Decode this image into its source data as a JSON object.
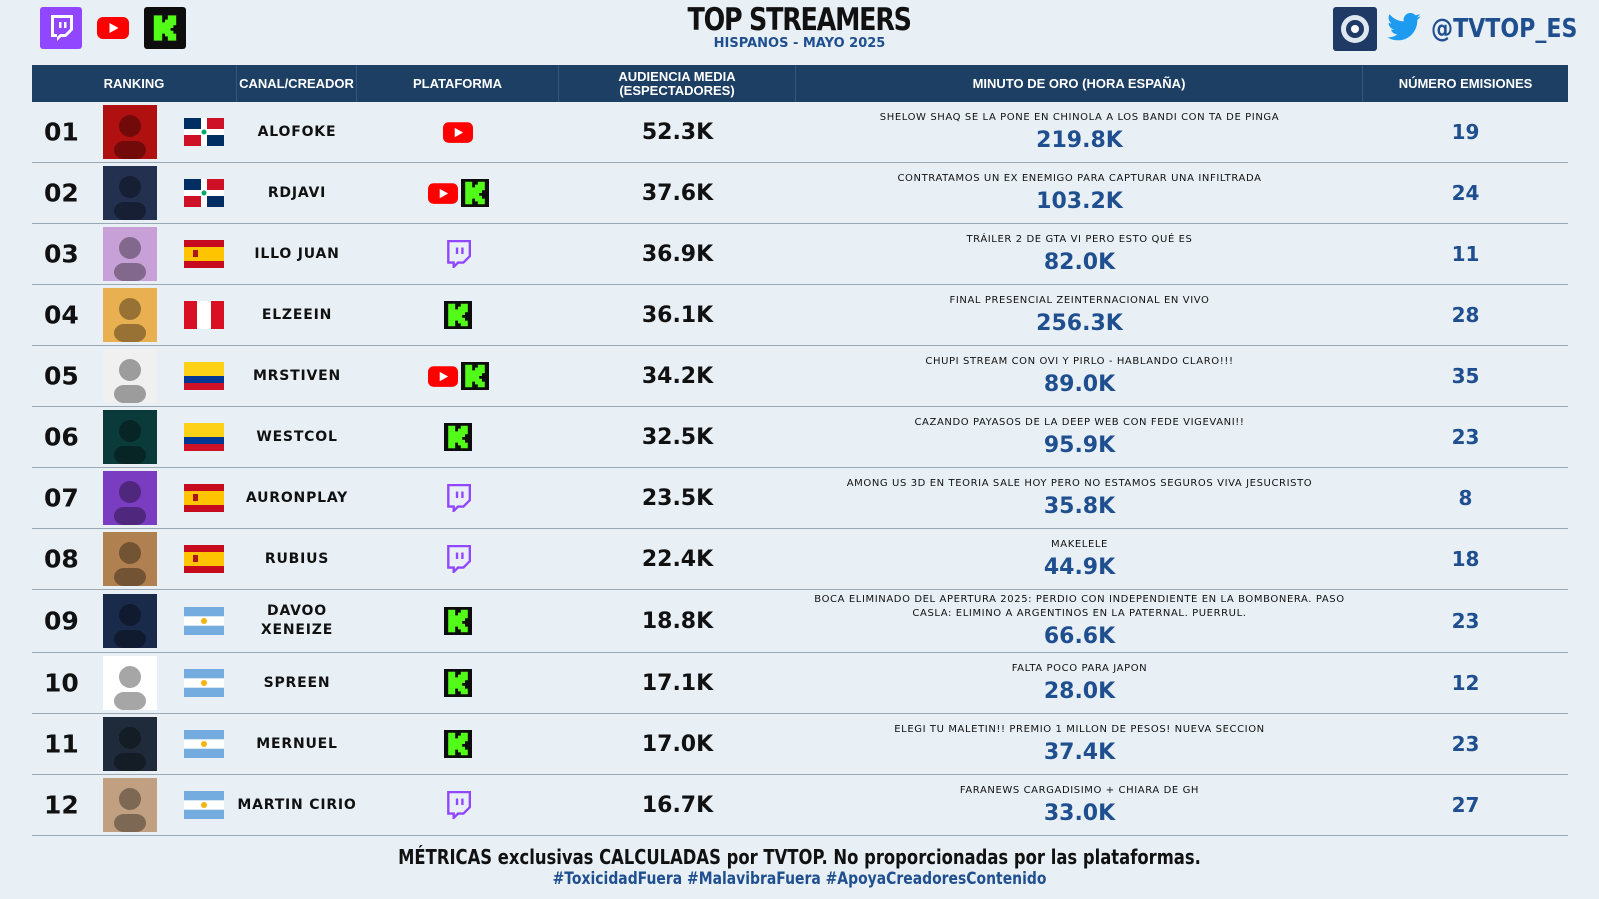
{
  "header": {
    "title": "TOP STREAMERS",
    "subtitle": "HISPANOS - MAYO 2025",
    "handle": "@TVTOP_ES",
    "platform_logos": [
      "twitch-logo",
      "youtube-logo",
      "kick-logo"
    ]
  },
  "colors": {
    "header_bg": "#1c3f63",
    "accent_blue": "#1f4f8f",
    "twitch": "#9146ff",
    "youtube": "#ff0000",
    "kick": "#53fc18",
    "page_bg": "#e8f0f6"
  },
  "columns": {
    "ranking": "RANKING",
    "canal": "CANAL/CREADOR",
    "plataforma": "PLATAFORMA",
    "audiencia_1": "AUDIENCIA MEDIA",
    "audiencia_2": "(ESPECTADORES)",
    "minuto": "MINUTO DE ORO (HORA ESPAÑA)",
    "emisiones": "NÚMERO EMISIONES"
  },
  "rows": [
    {
      "rank": "01",
      "flag": "dominican-republic",
      "name": "ALOFOKE",
      "platforms": [
        "youtube"
      ],
      "audience": "52.3K",
      "gold_title": "SHELOW SHAQ SE LA PONE EN CHINOLA A LOS BANDI CON TA DE PINGA",
      "gold_value": "219.8K",
      "streams": "19"
    },
    {
      "rank": "02",
      "flag": "dominican-republic",
      "name": "RDJAVI",
      "platforms": [
        "youtube",
        "kick"
      ],
      "audience": "37.6K",
      "gold_title": "CONTRATAMOS UN EX ENEMIGO PARA CAPTURAR UNA INFILTRADA",
      "gold_value": "103.2K",
      "streams": "24"
    },
    {
      "rank": "03",
      "flag": "spain",
      "name": "ILLO JUAN",
      "platforms": [
        "twitch"
      ],
      "audience": "36.9K",
      "gold_title": "TRÁILER 2 DE GTA VI PERO ESTO QUÉ ES",
      "gold_value": "82.0K",
      "streams": "11"
    },
    {
      "rank": "04",
      "flag": "peru",
      "name": "ELZEEIN",
      "platforms": [
        "kick"
      ],
      "audience": "36.1K",
      "gold_title": "FINAL PRESENCIAL ZEINTERNACIONAL EN VIVO",
      "gold_value": "256.3K",
      "streams": "28"
    },
    {
      "rank": "05",
      "flag": "colombia",
      "name": "MRSTIVEN",
      "platforms": [
        "youtube",
        "kick"
      ],
      "audience": "34.2K",
      "gold_title": "CHUPI STREAM CON OVI Y PIRLO - HABLANDO CLARO!!!",
      "gold_value": "89.0K",
      "streams": "35"
    },
    {
      "rank": "06",
      "flag": "colombia",
      "name": "WESTCOL",
      "platforms": [
        "kick"
      ],
      "audience": "32.5K",
      "gold_title": "CAZANDO PAYASOS DE LA DEEP WEB CON FEDE VIGEVANI!!",
      "gold_value": "95.9K",
      "streams": "23"
    },
    {
      "rank": "07",
      "flag": "spain",
      "name": "AURONPLAY",
      "platforms": [
        "twitch"
      ],
      "audience": "23.5K",
      "gold_title": "AMONG US 3D EN TEORIA SALE HOY PERO NO ESTAMOS SEGUROS VIVA JESUCRISTO",
      "gold_value": "35.8K",
      "streams": "8"
    },
    {
      "rank": "08",
      "flag": "spain",
      "name": "RUBIUS",
      "platforms": [
        "twitch"
      ],
      "audience": "22.4K",
      "gold_title": "MAKELELE",
      "gold_value": "44.9K",
      "streams": "18"
    },
    {
      "rank": "09",
      "flag": "argentina",
      "name": "DAVOO XENEIZE",
      "platforms": [
        "kick"
      ],
      "audience": "18.8K",
      "gold_title": "BOCA ELIMINADO DEL APERTURA 2025: PERDIO CON INDEPENDIENTE EN LA BOMBONERA. PASO CASLA: ELIMINO A ARGENTINOS EN LA PATERNAL. PUERRUL.",
      "gold_value": "66.6K",
      "streams": "23"
    },
    {
      "rank": "10",
      "flag": "argentina",
      "name": "SPREEN",
      "platforms": [
        "kick"
      ],
      "audience": "17.1K",
      "gold_title": "FALTA POCO PARA JAPON",
      "gold_value": "28.0K",
      "streams": "12"
    },
    {
      "rank": "11",
      "flag": "argentina",
      "name": "MERNUEL",
      "platforms": [
        "kick"
      ],
      "audience": "17.0K",
      "gold_title": "ELEGI TU MALETIN!! PREMIO 1 MILLON DE PESOS! NUEVA SECCION",
      "gold_value": "37.4K",
      "streams": "23"
    },
    {
      "rank": "12",
      "flag": "argentina",
      "name": "MARTIN CIRIO",
      "platforms": [
        "twitch"
      ],
      "audience": "16.7K",
      "gold_title": "FARANEWS CARGADISIMO + CHIARA DE GH",
      "gold_value": "33.0K",
      "streams": "27"
    }
  ],
  "footer": {
    "disclaimer": "MÉTRICAS exclusivas CALCULADAS por TVTOP. No proporcionadas por las plataformas.",
    "hashtags": "#ToxicidadFuera #MalavibraFuera #ApoyaCreadoresContenido"
  }
}
